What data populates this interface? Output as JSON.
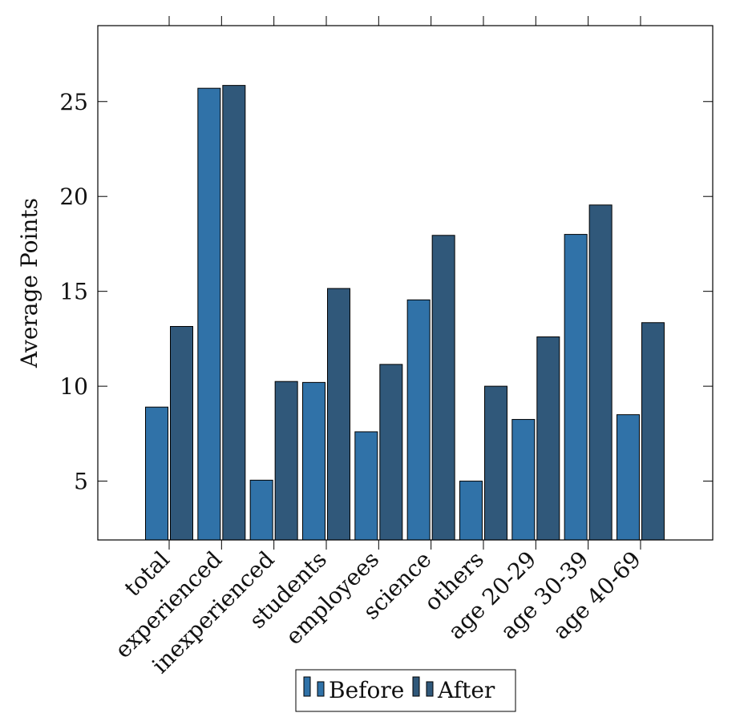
{
  "chart_data": {
    "type": "bar",
    "title": "",
    "xlabel": "",
    "ylabel": "Average Points",
    "categories": [
      "total",
      "experienced",
      "inexperienced",
      "students",
      "employees",
      "science",
      "others",
      "age 20-29",
      "age 30-39",
      "age 40-69"
    ],
    "series": [
      {
        "name": "Before",
        "color": "#3072a8",
        "values": [
          8.9,
          25.7,
          5.05,
          10.2,
          7.6,
          14.55,
          5.0,
          8.25,
          18.0,
          8.5
        ]
      },
      {
        "name": "After",
        "color": "#30587a",
        "values": [
          13.15,
          25.85,
          10.25,
          15.15,
          11.15,
          17.95,
          10.0,
          12.6,
          19.55,
          13.35
        ]
      }
    ],
    "ylim": [
      1.9,
      29
    ],
    "yticks": [
      5,
      10,
      15,
      20,
      25
    ],
    "grid": false,
    "legend": "bottom-center"
  }
}
